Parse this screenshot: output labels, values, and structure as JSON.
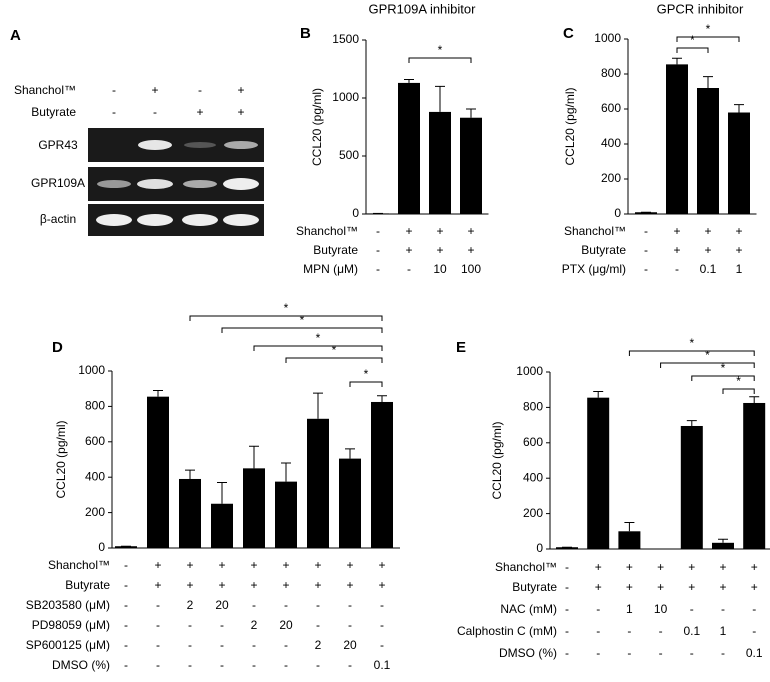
{
  "panel_a": {
    "letter": "A",
    "treatments": [
      {
        "label": "Shanchol™",
        "values": [
          "-",
          "+",
          "-",
          "+"
        ]
      },
      {
        "label": "Butyrate",
        "values": [
          "-",
          "-",
          "+",
          "+"
        ]
      }
    ],
    "bands": [
      "GPR43",
      "GPR109A",
      "β-actin"
    ]
  },
  "chart_data": [
    {
      "type": "bar",
      "letter": "B",
      "title": "GPR109A inhibitor",
      "y_label": "CCL20 (pg/ml)",
      "color": "#000000",
      "values": [
        5,
        1130,
        880,
        830
      ],
      "errors": [
        0,
        30,
        220,
        75
      ],
      "ylim": [
        0,
        1500
      ],
      "yticks": [
        0,
        500,
        1000,
        1500
      ],
      "treatments": [
        {
          "label": "Shanchol™",
          "values": [
            "-",
            "+",
            "+",
            "+"
          ]
        },
        {
          "label": "Butyrate",
          "values": [
            "-",
            "+",
            "+",
            "+"
          ]
        },
        {
          "label": "MPN (μM)",
          "values": [
            "-",
            "-",
            "10",
            "100"
          ]
        }
      ],
      "comparisons": [
        {
          "pair": [
            1,
            3
          ],
          "label": "*"
        }
      ]
    },
    {
      "type": "bar",
      "letter": "C",
      "title": "GPCR inhibitor",
      "y_label": "CCL20 (pg/ml)",
      "color": "#000000",
      "values": [
        10,
        855,
        720,
        580
      ],
      "errors": [
        0,
        35,
        65,
        45
      ],
      "ylim": [
        0,
        1000
      ],
      "yticks": [
        0,
        200,
        400,
        600,
        800,
        1000
      ],
      "treatments": [
        {
          "label": "Shanchol™",
          "values": [
            "-",
            "+",
            "+",
            "+"
          ]
        },
        {
          "label": "Butyrate",
          "values": [
            "-",
            "+",
            "+",
            "+"
          ]
        },
        {
          "label": "PTX (μg/ml)",
          "values": [
            "-",
            "-",
            "0.1",
            "1"
          ]
        }
      ],
      "comparisons": [
        {
          "pair": [
            1,
            2
          ],
          "label": "*"
        },
        {
          "pair": [
            1,
            3
          ],
          "label": "*"
        }
      ]
    },
    {
      "type": "bar",
      "letter": "D",
      "y_label": "CCL20 (pg/ml)",
      "color": "#000000",
      "values": [
        10,
        855,
        390,
        250,
        450,
        375,
        730,
        505,
        825
      ],
      "errors": [
        0,
        35,
        50,
        120,
        125,
        105,
        145,
        55,
        35
      ],
      "ylim": [
        0,
        1000
      ],
      "yticks": [
        0,
        200,
        400,
        600,
        800,
        1000
      ],
      "treatments": [
        {
          "label": "Shanchol™",
          "values": [
            "-",
            "+",
            "+",
            "+",
            "+",
            "+",
            "+",
            "+",
            "+"
          ]
        },
        {
          "label": "Butyrate",
          "values": [
            "-",
            "+",
            "+",
            "+",
            "+",
            "+",
            "+",
            "+",
            "+"
          ]
        },
        {
          "label": "SB203580 (μM)",
          "values": [
            "-",
            "-",
            "2",
            "20",
            "-",
            "-",
            "-",
            "-",
            "-"
          ]
        },
        {
          "label": "PD98059 (μM)",
          "values": [
            "-",
            "-",
            "-",
            "-",
            "2",
            "20",
            "-",
            "-",
            "-"
          ]
        },
        {
          "label": "SP600125 (μM)",
          "values": [
            "-",
            "-",
            "-",
            "-",
            "-",
            "-",
            "2",
            "20",
            "-"
          ]
        },
        {
          "label": "DMSO (%)",
          "values": [
            "-",
            "-",
            "-",
            "-",
            "-",
            "-",
            "-",
            "-",
            "0.1"
          ]
        }
      ],
      "comparisons": [
        {
          "pair": [
            2,
            8
          ],
          "label": "*"
        },
        {
          "pair": [
            3,
            8
          ],
          "label": "*"
        },
        {
          "pair": [
            4,
            8
          ],
          "label": "*"
        },
        {
          "pair": [
            5,
            8
          ],
          "label": "*"
        },
        {
          "pair": [
            7,
            8
          ],
          "label": "*"
        }
      ]
    },
    {
      "type": "bar",
      "letter": "E",
      "y_label": "CCL20 (pg/ml)",
      "color": "#000000",
      "values": [
        10,
        855,
        100,
        0,
        695,
        35,
        825
      ],
      "errors": [
        0,
        35,
        50,
        0,
        30,
        20,
        35
      ],
      "ylim": [
        0,
        1000
      ],
      "yticks": [
        0,
        200,
        400,
        600,
        800,
        1000
      ],
      "treatments": [
        {
          "label": "Shanchol™",
          "values": [
            "-",
            "+",
            "+",
            "+",
            "+",
            "+",
            "+"
          ]
        },
        {
          "label": "Butyrate",
          "values": [
            "-",
            "+",
            "+",
            "+",
            "+",
            "+",
            "+"
          ]
        },
        {
          "label": "NAC (mM)",
          "values": [
            "-",
            "-",
            "1",
            "10",
            "-",
            "-",
            "-"
          ]
        },
        {
          "label": "Calphostin C (mM)",
          "values": [
            "-",
            "-",
            "-",
            "-",
            "0.1",
            "1",
            "-"
          ]
        },
        {
          "label": "DMSO (%)",
          "values": [
            "-",
            "-",
            "-",
            "-",
            "-",
            "-",
            "0.1"
          ]
        }
      ],
      "comparisons": [
        {
          "pair": [
            2,
            6
          ],
          "label": "*"
        },
        {
          "pair": [
            3,
            6
          ],
          "label": "*"
        },
        {
          "pair": [
            4,
            6
          ],
          "label": "*"
        },
        {
          "pair": [
            5,
            6
          ],
          "label": "*"
        }
      ]
    }
  ]
}
